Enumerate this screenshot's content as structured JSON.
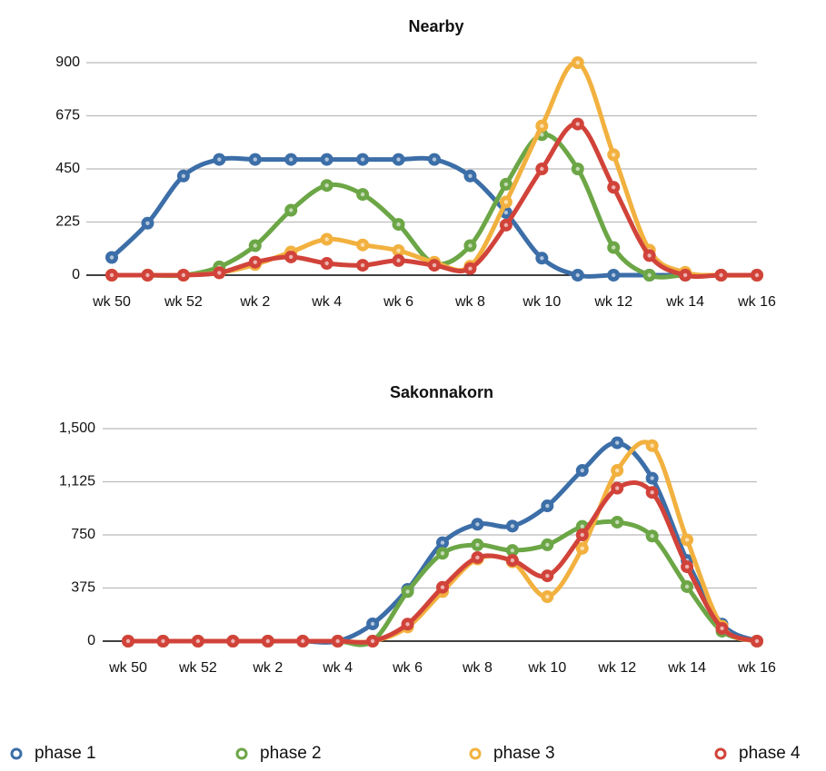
{
  "chart_data": [
    {
      "type": "line",
      "title": "Nearby",
      "categories": [
        "wk 50",
        null,
        "wk 52",
        null,
        "wk 2",
        null,
        "wk 4",
        null,
        "wk 6",
        null,
        "wk 8",
        null,
        "wk 10",
        null,
        "wk 12",
        null,
        "wk 14",
        null,
        "wk 16"
      ],
      "ylim": [
        0,
        900
      ],
      "yticks": [
        0,
        225,
        450,
        675,
        900
      ],
      "grid": true,
      "smooth": true,
      "legend": "bottom",
      "series": [
        {
          "name": "phase 1",
          "color": "#3c6ea8",
          "values": [
            75,
            220,
            420,
            490,
            490,
            490,
            490,
            490,
            490,
            490,
            420,
            265,
            72,
            0,
            0,
            0,
            0,
            0,
            0
          ]
        },
        {
          "name": "phase 2",
          "color": "#6ca646",
          "values": [
            0,
            0,
            0,
            35,
            125,
            275,
            380,
            342,
            215,
            50,
            125,
            385,
            595,
            450,
            117,
            0,
            0,
            0,
            0
          ]
        },
        {
          "name": "phase 3",
          "color": "#f2b13f",
          "values": [
            0,
            0,
            0,
            10,
            45,
            98,
            152,
            128,
            104,
            55,
            38,
            310,
            632,
            900,
            510,
            106,
            12,
            0,
            0
          ]
        },
        {
          "name": "phase 4",
          "color": "#d1433a",
          "values": [
            0,
            0,
            0,
            10,
            55,
            77,
            50,
            42,
            62,
            42,
            28,
            212,
            450,
            640,
            372,
            83,
            0,
            0,
            0
          ]
        }
      ]
    },
    {
      "type": "line",
      "title": "Sakonnakorn",
      "categories": [
        "wk 50",
        null,
        "wk 52",
        null,
        "wk 2",
        null,
        "wk 4",
        null,
        "wk 6",
        null,
        "wk 8",
        null,
        "wk 10",
        null,
        "wk 12",
        null,
        "wk 14",
        null,
        "wk 16"
      ],
      "ylim": [
        0,
        1500
      ],
      "yticks": [
        0,
        375,
        750,
        {
          "value": 1125,
          "label": "1,125"
        },
        {
          "value": 1500,
          "label": "1,500"
        }
      ],
      "grid": true,
      "smooth": true,
      "series": [
        {
          "color": "#3c6ea8",
          "values": [
            0,
            0,
            0,
            0,
            0,
            0,
            0,
            122,
            365,
            695,
            825,
            812,
            955,
            1205,
            1400,
            1150,
            570,
            120,
            0
          ]
        },
        {
          "color": "#6ca646",
          "values": [
            0,
            0,
            0,
            0,
            0,
            0,
            0,
            0,
            350,
            620,
            680,
            640,
            680,
            810,
            840,
            742,
            385,
            70,
            0
          ]
        },
        {
          "color": "#f2b13f",
          "values": [
            0,
            0,
            0,
            0,
            0,
            0,
            0,
            0,
            100,
            350,
            580,
            560,
            314,
            655,
            1205,
            1380,
            715,
            105,
            0
          ]
        },
        {
          "color": "#d1433a",
          "values": [
            0,
            0,
            0,
            0,
            0,
            0,
            0,
            0,
            120,
            380,
            590,
            570,
            461,
            750,
            1080,
            1050,
            525,
            90,
            0
          ]
        }
      ]
    }
  ]
}
